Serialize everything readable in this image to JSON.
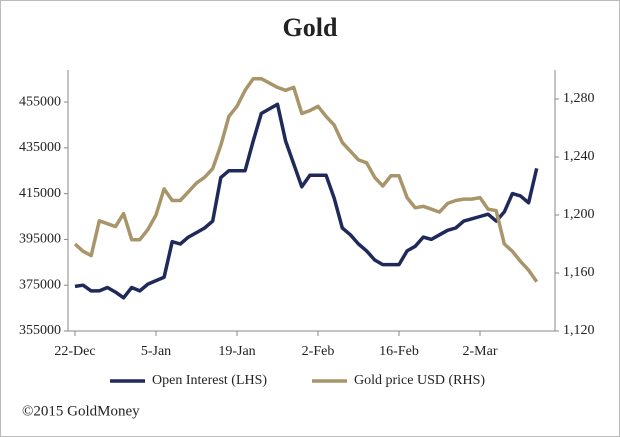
{
  "chart_data": {
    "type": "line",
    "title": "Gold",
    "source": "©2015 GoldMoney",
    "categories": [
      "22-Dec",
      null,
      null,
      null,
      null,
      null,
      null,
      null,
      null,
      null,
      "5-Jan",
      null,
      null,
      null,
      null,
      null,
      null,
      null,
      null,
      null,
      "19-Jan",
      null,
      null,
      null,
      null,
      null,
      null,
      null,
      null,
      null,
      "2-Feb",
      null,
      null,
      null,
      null,
      null,
      null,
      null,
      null,
      null,
      "16-Feb",
      null,
      null,
      null,
      null,
      null,
      null,
      null,
      null,
      null,
      "2-Mar",
      null,
      null,
      null,
      null,
      null,
      null,
      null
    ],
    "series": [
      {
        "name": "Open Interest (LHS)",
        "color": "#1f2a5a",
        "values": [
          374500,
          375000,
          372500,
          372500,
          374000,
          372000,
          369500,
          374000,
          372500,
          375500,
          377000,
          378500,
          394000,
          393000,
          396000,
          398000,
          400000,
          403000,
          422000,
          425000,
          425000,
          425000,
          438000,
          450000,
          452000,
          454000,
          438000,
          428000,
          418000,
          423000,
          423000,
          423000,
          413000,
          400000,
          397000,
          393000,
          390000,
          386000,
          384000,
          384000,
          384000,
          390000,
          392000,
          396000,
          395000,
          397000,
          399000,
          400000,
          403000,
          404000,
          405000,
          406000,
          403000,
          407000,
          415000,
          414000,
          411000,
          426000
        ]
      },
      {
        "name": "Gold price USD (RHS)",
        "color": "#a8966a",
        "axis": "y2",
        "values": [
          1180,
          1175,
          1172,
          1196,
          1194,
          1192,
          1201,
          1183,
          1183,
          1190,
          1200,
          1218,
          1210,
          1210,
          1216,
          1222,
          1226,
          1232,
          1248,
          1268,
          1275,
          1286,
          1294,
          1294,
          1291,
          1288,
          1286,
          1288,
          1270,
          1272,
          1275,
          1268,
          1262,
          1250,
          1244,
          1238,
          1236,
          1226,
          1220,
          1227,
          1227,
          1212,
          1205,
          1206,
          1204,
          1202,
          1208,
          1210,
          1211,
          1211,
          1212,
          1204,
          1203,
          1180,
          1175,
          1168,
          1162,
          1154
        ]
      }
    ],
    "ylim": [
      355000,
      469000
    ],
    "yticks": [
      355000,
      375000,
      395000,
      415000,
      435000,
      455000
    ],
    "y2lim": [
      1120,
      1300
    ],
    "y2ticks": [
      {
        "value": 1120,
        "label": "1,120"
      },
      {
        "value": 1160,
        "label": "1,160"
      },
      {
        "value": 1200,
        "label": "1,200"
      },
      {
        "value": 1240,
        "label": "1,240"
      },
      {
        "value": 1280,
        "label": "1,280"
      }
    ],
    "grid": false,
    "legend": "bottom"
  }
}
